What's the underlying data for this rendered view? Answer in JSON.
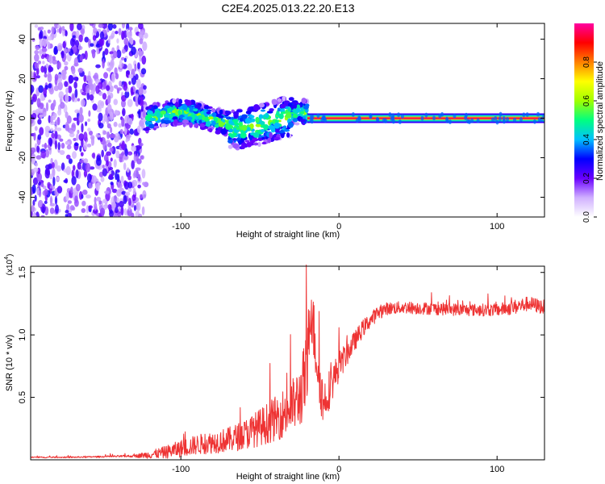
{
  "figure_title": "C2E4.2025.013.22.20.E13",
  "chart_data": [
    {
      "type": "heatmap",
      "title": "C2E4.2025.013.22.20.E13",
      "xlabel": "Height of straight line (km)",
      "ylabel": "Frequency (Hz)",
      "xlim": [
        -195,
        130
      ],
      "ylim": [
        -50,
        48
      ],
      "xticks": [
        -100,
        0,
        100
      ],
      "xtick_labels": [
        "-100",
        "0",
        "100"
      ],
      "yticks": [
        -40,
        -20,
        0,
        20,
        40
      ],
      "ytick_labels": [
        "-40",
        "-20",
        "0",
        "20",
        "40"
      ],
      "colorbar": {
        "label": "Normalized spectral amplitude",
        "range": [
          0,
          1
        ],
        "ticks": [
          0.0,
          0.2,
          0.4,
          0.6,
          0.8
        ],
        "tick_labels": [
          "0.0",
          "0.2",
          "0.4",
          "0.6",
          "0.8"
        ],
        "colormap": [
          "#ffffff",
          "#d0b0ff",
          "#6a00ff",
          "#0000ff",
          "#00c0ff",
          "#00ff80",
          "#a0ff00",
          "#ffff00",
          "#ff8000",
          "#ff0000",
          "#ff00a0"
        ]
      },
      "regions": [
        {
          "x_range": [
            -195,
            -122
          ],
          "description_values": {
            "freq_spread_hz": [
              -50,
              48
            ],
            "amplitude": 0.15
          }
        },
        {
          "x_range": [
            -122,
            -20
          ],
          "description_values": {
            "freq_spread_hz": [
              -12,
              10
            ],
            "amplitude": 0.45
          }
        },
        {
          "x_range": [
            -20,
            130
          ],
          "description_values": {
            "freq_hz": 0,
            "amplitude": 0.95
          }
        }
      ]
    },
    {
      "type": "line",
      "xlabel": "Height of straight line (km)",
      "ylabel": "SNR (10 * v/v)",
      "y_multiplier": "(x10",
      "y_multiplier_exp": "4",
      "y_multiplier_close": ")",
      "xlim": [
        -195,
        130
      ],
      "ylim": [
        0,
        1.55
      ],
      "xticks": [
        -100,
        0,
        100
      ],
      "xtick_labels": [
        "-100",
        "0",
        "100"
      ],
      "yticks": [
        0.5,
        1.0,
        1.5
      ],
      "ytick_labels": [
        "0.5",
        "1.0",
        "1.5"
      ],
      "series": [
        {
          "name": "SNR",
          "color": "#ee3333",
          "x": [
            -195,
            -170,
            -150,
            -130,
            -120,
            -110,
            -100,
            -90,
            -80,
            -70,
            -60,
            -50,
            -40,
            -30,
            -25,
            -20,
            -18,
            -15,
            -10,
            -5,
            0,
            5,
            10,
            15,
            20,
            25,
            30,
            40,
            60,
            80,
            100,
            110,
            120,
            130
          ],
          "y": [
            0.02,
            0.02,
            0.025,
            0.03,
            0.04,
            0.06,
            0.09,
            0.12,
            0.14,
            0.16,
            0.2,
            0.26,
            0.33,
            0.42,
            0.5,
            0.7,
            1.3,
            0.9,
            0.45,
            0.6,
            0.75,
            0.85,
            0.95,
            1.05,
            1.12,
            1.18,
            1.21,
            1.22,
            1.21,
            1.2,
            1.2,
            1.22,
            1.25,
            1.22
          ],
          "noise": [
            0.005,
            0.005,
            0.006,
            0.01,
            0.03,
            0.05,
            0.07,
            0.08,
            0.09,
            0.1,
            0.12,
            0.15,
            0.18,
            0.22,
            0.25,
            0.35,
            0.3,
            0.25,
            0.2,
            0.15,
            0.12,
            0.1,
            0.08,
            0.07,
            0.06,
            0.06,
            0.05,
            0.05,
            0.05,
            0.05,
            0.05,
            0.06,
            0.06,
            0.06
          ]
        }
      ]
    }
  ]
}
